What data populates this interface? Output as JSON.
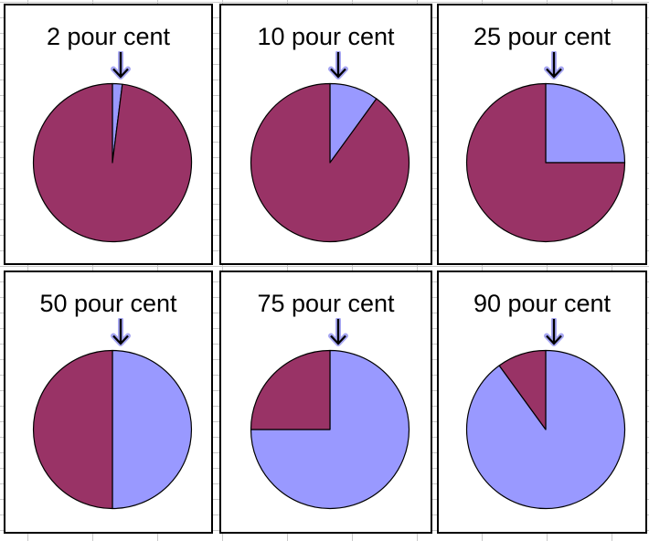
{
  "panels": [
    {
      "label": "2 pour cent",
      "percent": 2
    },
    {
      "label": "10 pour cent",
      "percent": 10
    },
    {
      "label": "25 pour cent",
      "percent": 25
    },
    {
      "label": "50 pour cent",
      "percent": 50
    },
    {
      "label": "75 pour cent",
      "percent": 75
    },
    {
      "label": "90 pour cent",
      "percent": 90
    }
  ],
  "colors": {
    "slice": "#9999ff",
    "remainder": "#993366",
    "pie_outline": "#000000",
    "arrow_core": "#000000",
    "arrow_outline": "#a6a6f2",
    "title_text": "#000000",
    "panel_border": "#000000",
    "grid_line": "#c9c9c9",
    "panel_background": "#ffffff"
  },
  "chart_data": [
    {
      "type": "pie",
      "title": "2 pour cent",
      "values": [
        2,
        98
      ],
      "colors": [
        "#9999ff",
        "#993366"
      ],
      "start_angle": "12-o-clock",
      "direction": "clockwise",
      "legend": false,
      "annotation": "down-arrow pointing at slice start"
    },
    {
      "type": "pie",
      "title": "10 pour cent",
      "values": [
        10,
        90
      ],
      "colors": [
        "#9999ff",
        "#993366"
      ],
      "start_angle": "12-o-clock",
      "direction": "clockwise",
      "legend": false,
      "annotation": "down-arrow pointing at slice start"
    },
    {
      "type": "pie",
      "title": "25 pour cent",
      "values": [
        25,
        75
      ],
      "colors": [
        "#9999ff",
        "#993366"
      ],
      "start_angle": "12-o-clock",
      "direction": "clockwise",
      "legend": false,
      "annotation": "down-arrow pointing at slice start"
    },
    {
      "type": "pie",
      "title": "50 pour cent",
      "values": [
        50,
        50
      ],
      "colors": [
        "#9999ff",
        "#993366"
      ],
      "start_angle": "12-o-clock",
      "direction": "clockwise",
      "legend": false,
      "annotation": "down-arrow pointing at slice start"
    },
    {
      "type": "pie",
      "title": "75 pour cent",
      "values": [
        75,
        25
      ],
      "colors": [
        "#9999ff",
        "#993366"
      ],
      "start_angle": "12-o-clock",
      "direction": "clockwise",
      "legend": false,
      "annotation": "down-arrow pointing at slice start"
    },
    {
      "type": "pie",
      "title": "90 pour cent",
      "values": [
        90,
        10
      ],
      "colors": [
        "#9999ff",
        "#993366"
      ],
      "start_angle": "12-o-clock",
      "direction": "clockwise",
      "legend": false,
      "annotation": "down-arrow pointing at slice start"
    }
  ]
}
